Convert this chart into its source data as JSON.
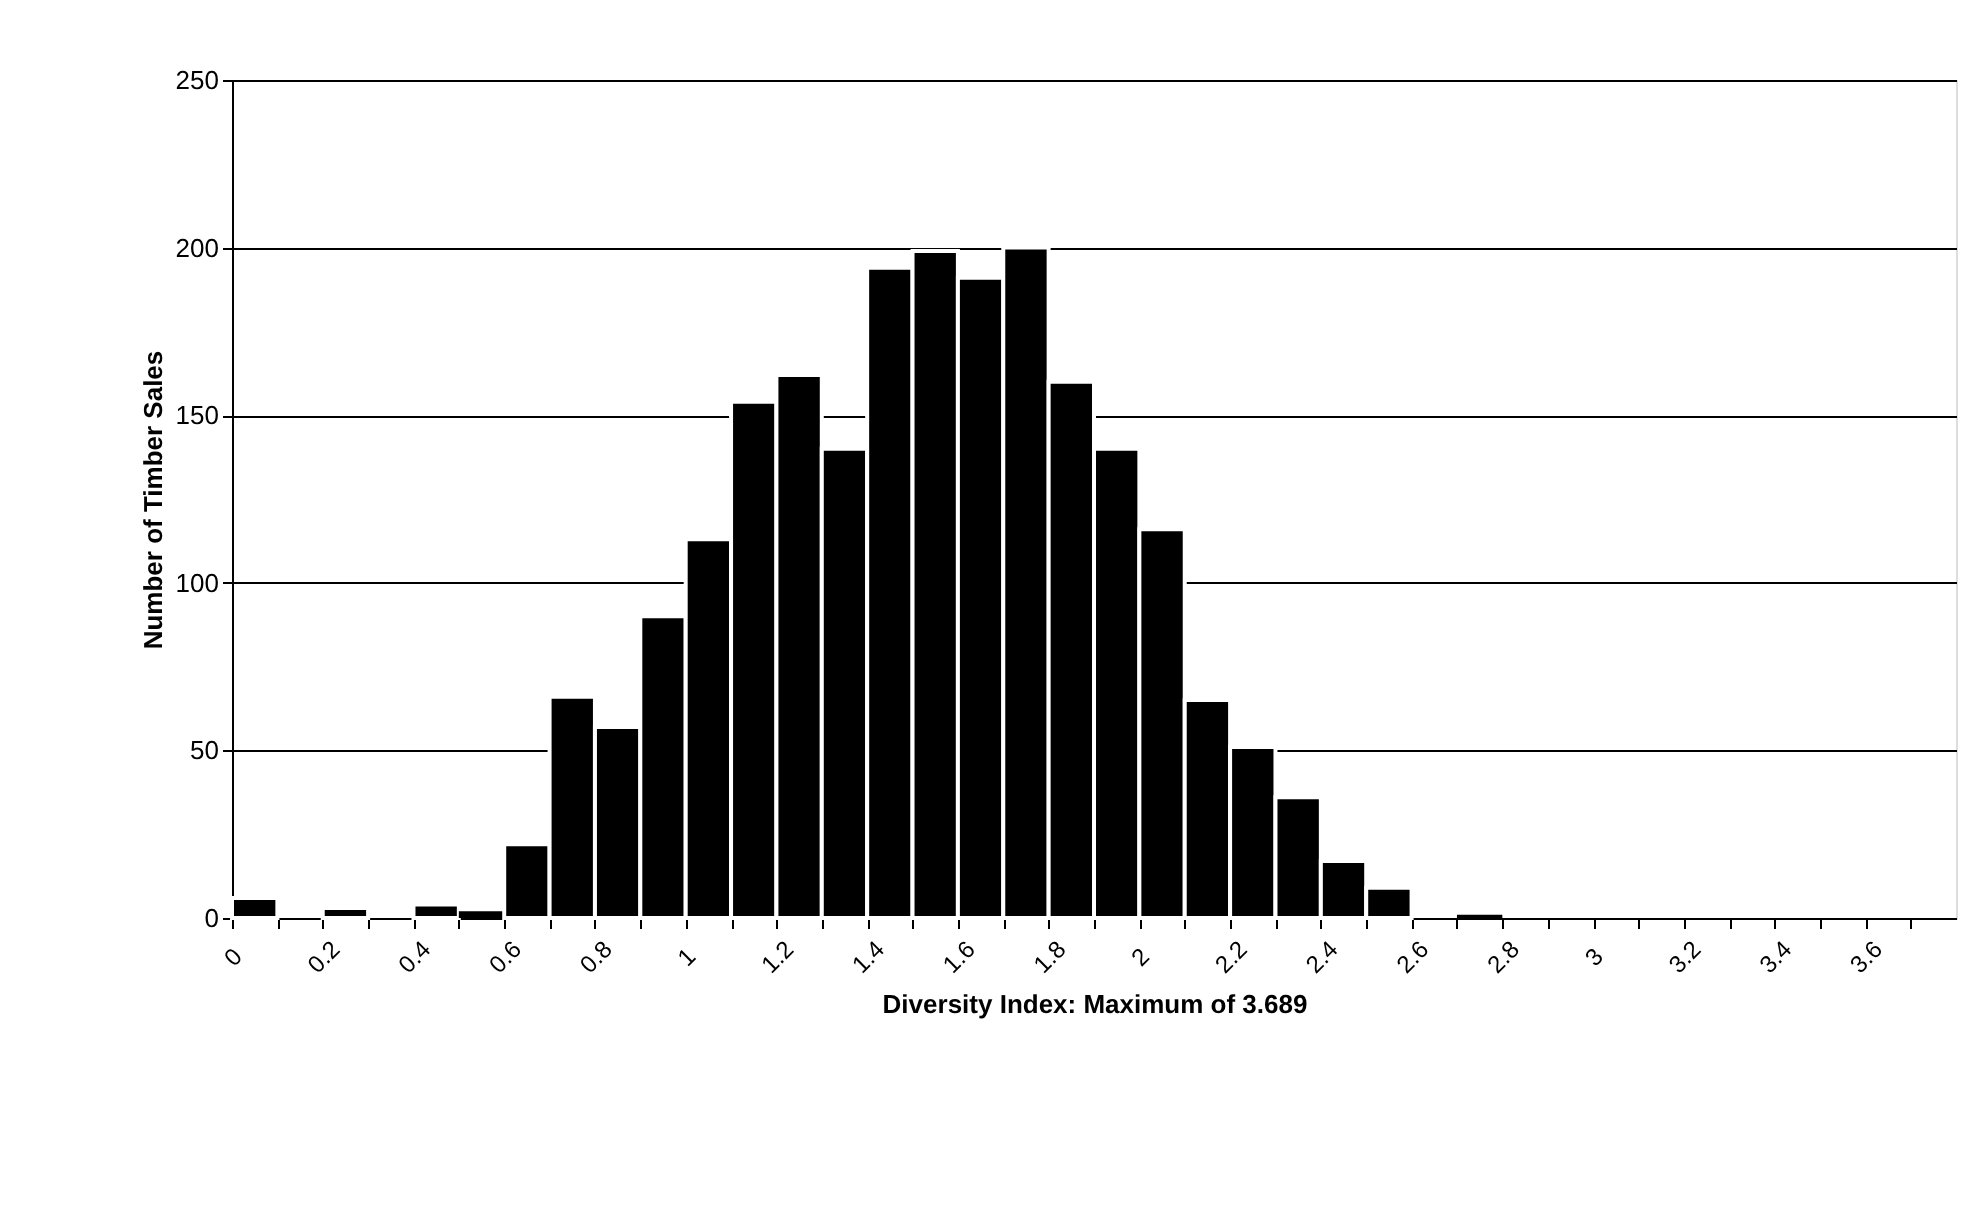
{
  "chart_data": {
    "type": "histogram",
    "xlabel": "Diversity Index: Maximum of 3.689",
    "ylabel": "Number of Timber Sales",
    "bins": [
      0,
      0.1,
      0.2,
      0.3,
      0.4,
      0.5,
      0.6,
      0.7,
      0.8,
      0.9,
      1,
      1.1,
      1.2,
      1.3,
      1.4,
      1.5,
      1.6,
      1.7,
      1.8,
      1.9,
      2,
      2.1,
      2.2,
      2.3,
      2.4,
      2.5,
      2.6,
      2.7,
      2.8,
      2.9,
      3,
      3.1,
      3.2,
      3.3,
      3.4,
      3.5,
      3.6,
      3.7,
      3.8
    ],
    "values": [
      6,
      0,
      3,
      0,
      4,
      2,
      22,
      66,
      57,
      90,
      113,
      154,
      162,
      140,
      194,
      199,
      191,
      200,
      160,
      140,
      116,
      65,
      51,
      36,
      17,
      9,
      0,
      1,
      0,
      0,
      0,
      0,
      0,
      0,
      0,
      0,
      0,
      0
    ],
    "color": "#000000",
    "xlim": [
      0,
      3.8
    ],
    "xticks": [
      0,
      {
        "value": 0.1,
        "label": null
      },
      0.2,
      {
        "value": 0.3,
        "label": null
      },
      0.4,
      {
        "value": 0.5,
        "label": null
      },
      0.6,
      {
        "value": 0.7,
        "label": null
      },
      0.8,
      {
        "value": 0.9,
        "label": null
      },
      1,
      {
        "value": 1.1,
        "label": null
      },
      1.2,
      {
        "value": 1.3,
        "label": null
      },
      1.4,
      {
        "value": 1.5,
        "label": null
      },
      1.6,
      {
        "value": 1.7,
        "label": null
      },
      1.8,
      {
        "value": 1.9,
        "label": null
      },
      2,
      {
        "value": 2.1,
        "label": null
      },
      2.2,
      {
        "value": 2.3,
        "label": null
      },
      2.4,
      {
        "value": 2.5,
        "label": null
      },
      2.6,
      {
        "value": 2.7,
        "label": null
      },
      2.8,
      {
        "value": 2.9,
        "label": null
      },
      3,
      {
        "value": 3.1,
        "label": null
      },
      3.2,
      {
        "value": 3.3,
        "label": null
      },
      3.4,
      {
        "value": 3.5,
        "label": null
      },
      3.6,
      {
        "value": 3.7,
        "label": null
      }
    ],
    "ylim": [
      0,
      250
    ],
    "yticks": [
      0,
      50,
      100,
      150,
      200,
      250
    ],
    "grid": "y"
  }
}
